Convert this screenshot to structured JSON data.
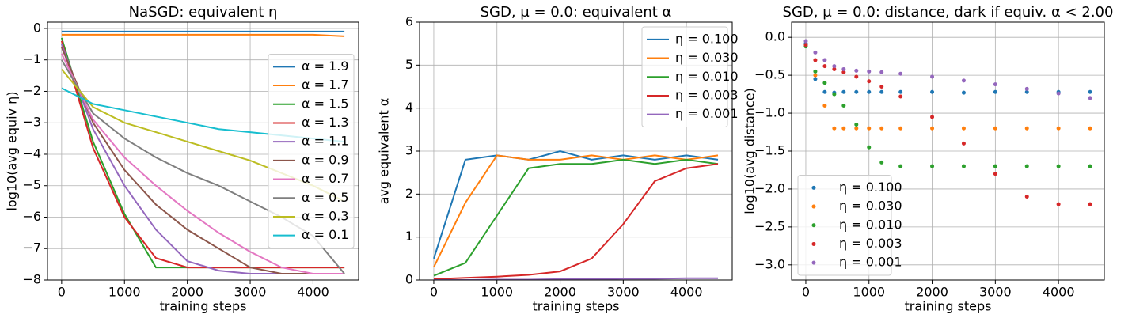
{
  "chart_data": [
    {
      "type": "line",
      "title": "NaSGD: equivalent η",
      "xlabel": "training steps",
      "ylabel": "log10(avg equiv η)",
      "x": [
        0,
        500,
        1000,
        1500,
        2000,
        2500,
        3000,
        3500,
        4000,
        4500
      ],
      "series": [
        {
          "name": "α = 1.9",
          "color": "#1f77b4",
          "values": [
            -0.1,
            -0.1,
            -0.1,
            -0.1,
            -0.1,
            -0.1,
            -0.1,
            -0.1,
            -0.1,
            -0.1
          ]
        },
        {
          "name": "α = 1.7",
          "color": "#ff7f0e",
          "values": [
            -0.2,
            -0.2,
            -0.2,
            -0.2,
            -0.2,
            -0.2,
            -0.2,
            -0.2,
            -0.2,
            -0.25
          ]
        },
        {
          "name": "α = 1.5",
          "color": "#2ca02c",
          "values": [
            -0.3,
            -3.6,
            -5.9,
            -7.6,
            -7.6,
            -7.6,
            -7.6,
            -7.6,
            -7.6,
            -7.6
          ]
        },
        {
          "name": "α = 1.3",
          "color": "#d62728",
          "values": [
            -0.4,
            -3.8,
            -6.0,
            -7.3,
            -7.6,
            -7.6,
            -7.6,
            -7.6,
            -7.6,
            -7.6
          ]
        },
        {
          "name": "α = 1.1",
          "color": "#9467bd",
          "values": [
            -0.5,
            -3.2,
            -5.0,
            -6.4,
            -7.4,
            -7.7,
            -7.8,
            -7.8,
            -7.8,
            -7.8
          ]
        },
        {
          "name": "α = 0.9",
          "color": "#8c564b",
          "values": [
            -0.6,
            -3.0,
            -4.5,
            -5.6,
            -6.4,
            -7.0,
            -7.6,
            -7.8,
            -7.8,
            -7.8
          ]
        },
        {
          "name": "α = 0.7",
          "color": "#e377c2",
          "values": [
            -0.8,
            -2.9,
            -4.1,
            -5.0,
            -5.8,
            -6.5,
            -7.1,
            -7.6,
            -7.8,
            -7.8
          ]
        },
        {
          "name": "α = 0.5",
          "color": "#7f7f7f",
          "values": [
            -1.0,
            -2.7,
            -3.5,
            -4.1,
            -4.6,
            -5.0,
            -5.5,
            -6.0,
            -6.6,
            -7.8
          ]
        },
        {
          "name": "α = 0.3",
          "color": "#bcbd22",
          "values": [
            -1.3,
            -2.5,
            -3.0,
            -3.3,
            -3.6,
            -3.9,
            -4.2,
            -4.6,
            -5.0,
            -5.5
          ]
        },
        {
          "name": "α = 0.1",
          "color": "#17becf",
          "values": [
            -1.9,
            -2.4,
            -2.6,
            -2.8,
            -3.0,
            -3.2,
            -3.3,
            -3.4,
            -3.5,
            -3.6
          ]
        }
      ],
      "xlim": [
        -225,
        4725
      ],
      "ylim": [
        -8,
        0.2
      ],
      "xticks": [
        0,
        1000,
        2000,
        3000,
        4000
      ],
      "yticks": [
        0,
        {
          "value": -1,
          "label": "−1"
        },
        {
          "value": -2,
          "label": "−2"
        },
        {
          "value": -3,
          "label": "−3"
        },
        {
          "value": -4,
          "label": "−4"
        },
        {
          "value": -5,
          "label": "−5"
        },
        {
          "value": -6,
          "label": "−6"
        },
        {
          "value": -7,
          "label": "−7"
        },
        {
          "value": -8,
          "label": "−8"
        }
      ],
      "grid": true,
      "legend": "center right"
    },
    {
      "type": "line",
      "title": "SGD, μ = 0.0: equivalent α",
      "xlabel": "training steps",
      "ylabel": "avg equivalent α",
      "x": [
        0,
        500,
        1000,
        1500,
        2000,
        2500,
        3000,
        3500,
        4000,
        4500
      ],
      "series": [
        {
          "name": "η = 0.100",
          "color": "#1f77b4",
          "values": [
            0.5,
            2.8,
            2.9,
            2.8,
            3.0,
            2.8,
            2.9,
            2.8,
            2.9,
            2.8
          ]
        },
        {
          "name": "η = 0.030",
          "color": "#ff7f0e",
          "values": [
            0.3,
            1.8,
            2.9,
            2.8,
            2.8,
            2.9,
            2.8,
            2.9,
            2.8,
            2.9
          ]
        },
        {
          "name": "η = 0.010",
          "color": "#2ca02c",
          "values": [
            0.1,
            0.4,
            1.5,
            2.6,
            2.7,
            2.7,
            2.8,
            2.7,
            2.8,
            2.7
          ]
        },
        {
          "name": "η = 0.003",
          "color": "#d62728",
          "values": [
            0.02,
            0.05,
            0.08,
            0.12,
            0.2,
            0.5,
            1.3,
            2.3,
            2.6,
            2.7
          ]
        },
        {
          "name": "η = 0.001",
          "color": "#9467bd",
          "values": [
            0.0,
            0.0,
            0.01,
            0.01,
            0.02,
            0.02,
            0.03,
            0.03,
            0.04,
            0.04
          ]
        }
      ],
      "xlim": [
        -225,
        4725
      ],
      "ylim": [
        0,
        6
      ],
      "xticks": [
        0,
        1000,
        2000,
        3000,
        4000
      ],
      "yticks": [
        0,
        1,
        2,
        3,
        4,
        5,
        6
      ],
      "grid": true,
      "legend": "upper right"
    },
    {
      "type": "scatter",
      "title": "SGD, μ = 0.0: distance, dark if equiv. α < 2.00",
      "xlabel": "training steps",
      "ylabel": "log10(avg distance)",
      "x": [
        0,
        150,
        300,
        450,
        600,
        800,
        1000,
        1200,
        1500,
        2000,
        2500,
        3000,
        3500,
        4000,
        4500
      ],
      "series": [
        {
          "name": "η = 0.100",
          "color": "#1f77b4",
          "values": [
            -0.08,
            -0.55,
            -0.72,
            -0.73,
            -0.72,
            -0.72,
            -0.72,
            -0.72,
            -0.72,
            -0.72,
            -0.73,
            -0.72,
            -0.72,
            -0.72,
            -0.72
          ]
        },
        {
          "name": "η = 0.030",
          "color": "#ff7f0e",
          "values": [
            -0.1,
            -0.5,
            -0.9,
            -1.2,
            -1.2,
            -1.2,
            -1.2,
            -1.2,
            -1.2,
            -1.2,
            -1.2,
            -1.2,
            -1.2,
            -1.2,
            -1.2
          ]
        },
        {
          "name": "η = 0.010",
          "color": "#2ca02c",
          "values": [
            -0.12,
            -0.45,
            -0.6,
            -0.75,
            -0.9,
            -1.15,
            -1.45,
            -1.65,
            -1.7,
            -1.7,
            -1.7,
            -1.7,
            -1.7,
            -1.7,
            -1.7
          ]
        },
        {
          "name": "η = 0.003",
          "color": "#d62728",
          "values": [
            -0.1,
            -0.3,
            -0.38,
            -0.42,
            -0.46,
            -0.52,
            -0.58,
            -0.65,
            -0.78,
            -1.05,
            -1.4,
            -1.8,
            -2.1,
            -2.2,
            -2.2
          ]
        },
        {
          "name": "η = 0.001",
          "color": "#9467bd",
          "values": [
            -0.05,
            -0.2,
            -0.3,
            -0.38,
            -0.42,
            -0.44,
            -0.45,
            -0.46,
            -0.48,
            -0.52,
            -0.57,
            -0.62,
            -0.68,
            -0.74,
            -0.8
          ]
        }
      ],
      "xlim": [
        -225,
        4725
      ],
      "ylim": [
        -3.2,
        0.2
      ],
      "xticks": [
        0,
        1000,
        2000,
        3000,
        4000
      ],
      "yticks": [
        {
          "value": 0,
          "label": "0.0"
        },
        {
          "value": -0.5,
          "label": "−0.5"
        },
        {
          "value": -1,
          "label": "−1.0"
        },
        {
          "value": -1.5,
          "label": "−1.5"
        },
        {
          "value": -2,
          "label": "−2.0"
        },
        {
          "value": -2.5,
          "label": "−2.5"
        },
        {
          "value": -3,
          "label": "−3.0"
        }
      ],
      "grid": true,
      "legend": "lower left"
    }
  ]
}
